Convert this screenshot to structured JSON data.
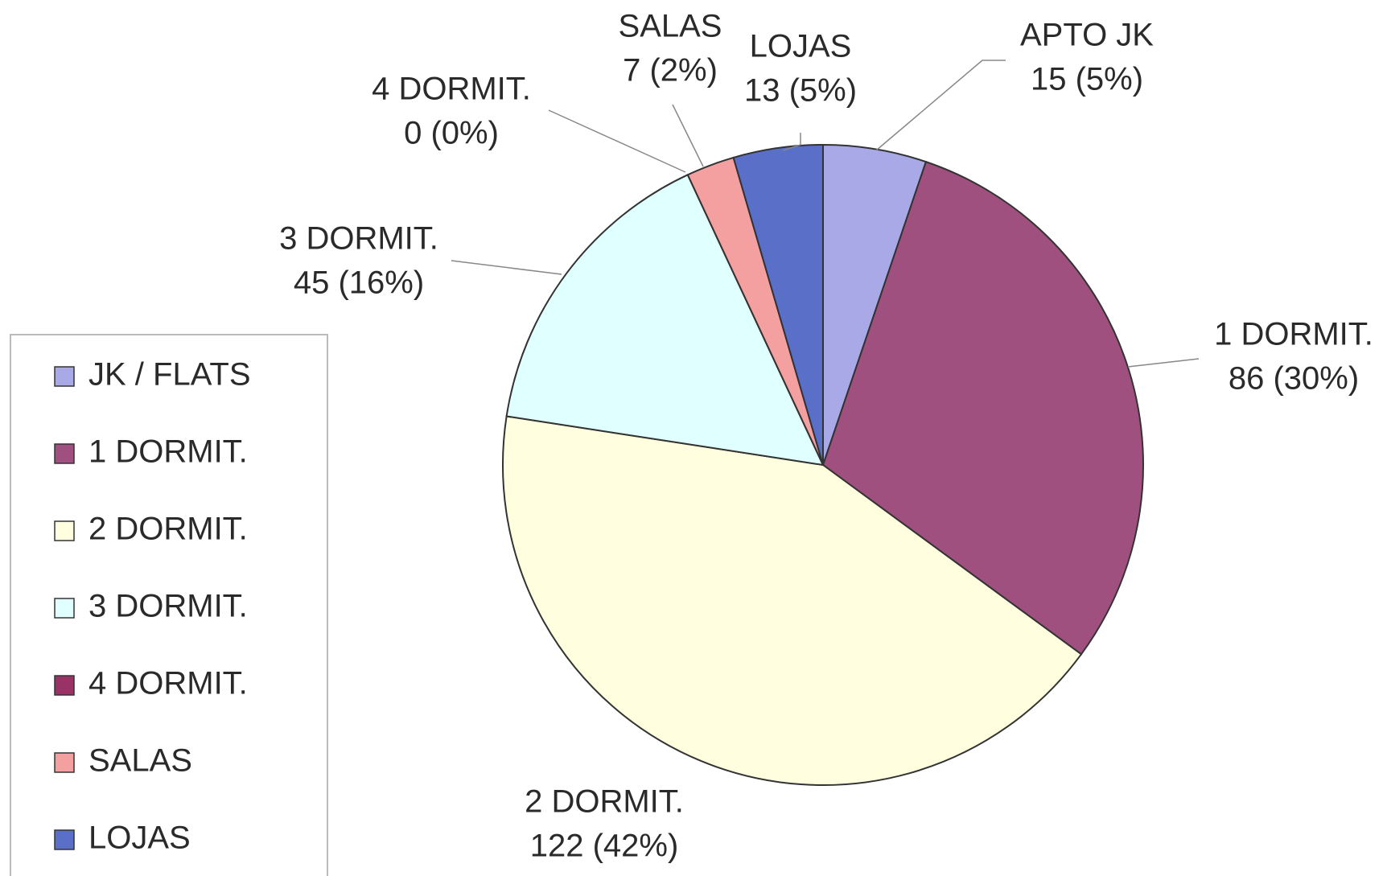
{
  "chart_data": {
    "type": "pie",
    "categories": [
      "JK / FLATS",
      "1 DORMIT.",
      "2 DORMIT.",
      "3 DORMIT.",
      "4 DORMIT.",
      "SALAS",
      "LOJAS"
    ],
    "label_names": [
      "APTO JK",
      "1 DORMIT.",
      "2 DORMIT.",
      "3 DORMIT.",
      "4 DORMIT.",
      "SALAS",
      "LOJAS"
    ],
    "values": [
      15,
      86,
      122,
      45,
      0,
      7,
      13
    ],
    "value_labels": [
      "15 (5%)",
      "86 (30%)",
      "122 (42%)",
      "45 (16%)",
      "0 (0%)",
      "7 (2%)",
      "13 (5%)"
    ],
    "colors": [
      "#a9a9e8",
      "#a0507f",
      "#ffffe0",
      "#e0ffff",
      "#993366",
      "#f4a0a0",
      "#5a6fc8"
    ],
    "legend": "left"
  }
}
